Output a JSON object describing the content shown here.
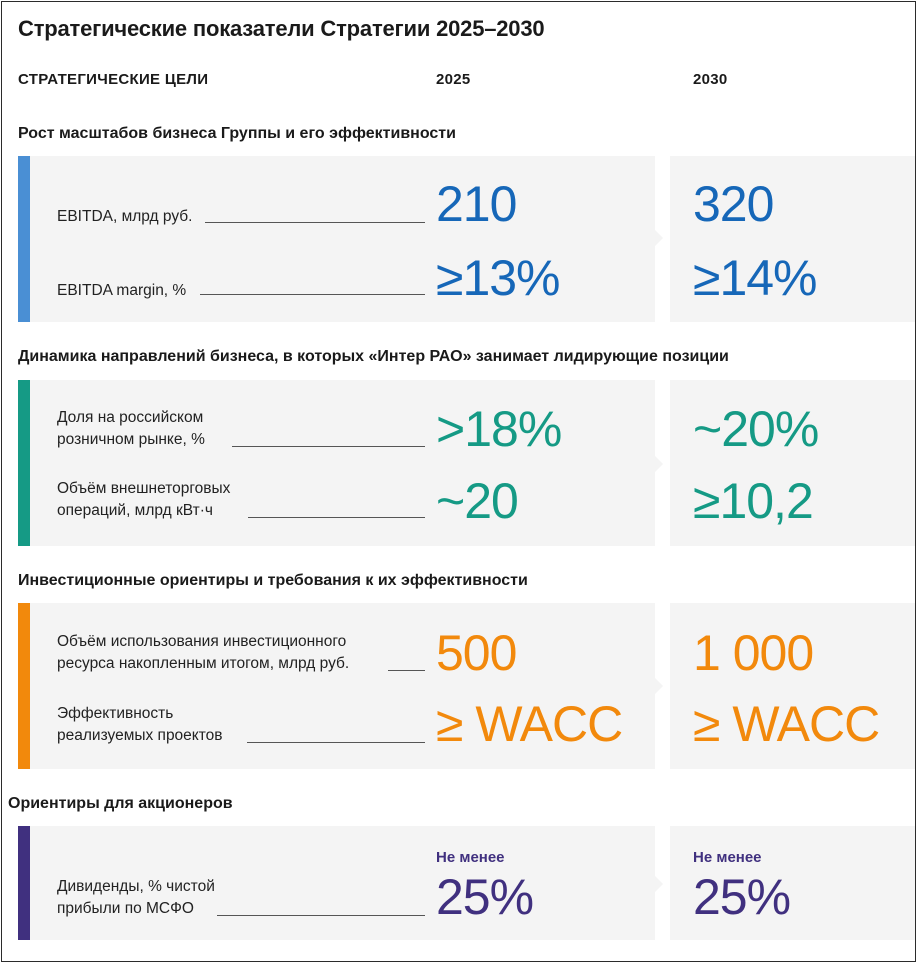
{
  "title": "Стратегические показатели Стратегии 2025–2030",
  "columns": {
    "goals": "СТРАТЕГИЧЕСКИЕ ЦЕЛИ",
    "y1": "2025",
    "y2": "2030"
  },
  "colors": {
    "blue": "#1667b8",
    "teal": "#159a85",
    "orange": "#f2890c",
    "purple": "#40307f",
    "panel": "#f4f4f4"
  },
  "sections": [
    {
      "title": "Рост масштабов бизнеса Группы и его эффективности",
      "accent": "#4a8fd4",
      "rows": [
        {
          "label": "EBITDA, млрд руб.",
          "v2025": "210",
          "v2030": "320"
        },
        {
          "label": "EBITDA margin, %",
          "v2025": "≥13%",
          "v2030": "≥14%"
        }
      ]
    },
    {
      "title": "Динамика направлений бизнеса, в которых «Интер РАО» занимает лидирующие позиции",
      "accent": "#159a85",
      "rows": [
        {
          "label_l1": "Доля на российском",
          "label_l2": "розничном рынке, %",
          "v2025": ">18%",
          "v2030": "~20%"
        },
        {
          "label_l1": "Объём внешнеторговых",
          "label_l2": "операций, млрд кВт·ч",
          "v2025": "~20",
          "v2030": "≥10,2"
        }
      ]
    },
    {
      "title": "Инвестиционные ориентиры и требования к их эффективности",
      "accent": "#f2890c",
      "rows": [
        {
          "label_l1": "Объём использования инвестиционного",
          "label_l2": "ресурса накопленным итогом, млрд руб.",
          "v2025": "500",
          "v2030": "1 000"
        },
        {
          "label_l1": "Эффективность",
          "label_l2": "реализуемых проектов",
          "v2025": "≥ WACC",
          "v2030": "≥ WACC"
        }
      ]
    },
    {
      "title": "Ориентиры для акционеров",
      "accent": "#40307f",
      "rows": [
        {
          "label_l1": "Дивиденды, % чистой",
          "label_l2": "прибыли по МСФО",
          "prefix2025": "Не менее",
          "v2025": "25%",
          "prefix2030": "Не менее",
          "v2030": "25%"
        }
      ]
    }
  ]
}
